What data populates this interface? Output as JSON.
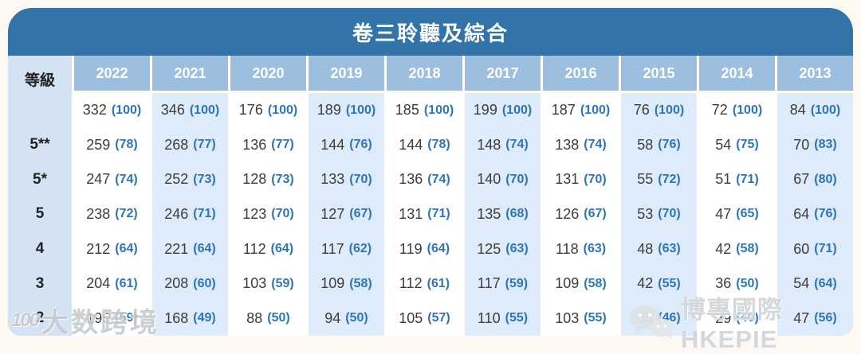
{
  "card": {
    "title": "卷三聆聽及綜合",
    "colors": {
      "title_bar": "#3273aa",
      "year_header": "#9cbfdf",
      "label_column": "#d3e3f3",
      "alt_column": "#ddebfa",
      "white_column": "#ffffff",
      "value_text": "#3c3c3c",
      "percent_text": "#2e75b6",
      "page_background": "#fdf8f1"
    }
  },
  "chart_data": {
    "type": "table",
    "title": "卷三聆聽及綜合",
    "row_header": "等級",
    "columns": [
      "2022",
      "2021",
      "2020",
      "2019",
      "2018",
      "2017",
      "2016",
      "2015",
      "2014",
      "2013"
    ],
    "cell_format": "value (percent)",
    "rows": [
      {
        "label": "",
        "cells": [
          [
            332,
            100
          ],
          [
            346,
            100
          ],
          [
            176,
            100
          ],
          [
            189,
            100
          ],
          [
            185,
            100
          ],
          [
            199,
            100
          ],
          [
            187,
            100
          ],
          [
            76,
            100
          ],
          [
            72,
            100
          ],
          [
            84,
            100
          ]
        ]
      },
      {
        "label": "5**",
        "cells": [
          [
            259,
            78
          ],
          [
            268,
            77
          ],
          [
            136,
            77
          ],
          [
            144,
            76
          ],
          [
            144,
            78
          ],
          [
            148,
            74
          ],
          [
            138,
            74
          ],
          [
            58,
            76
          ],
          [
            54,
            75
          ],
          [
            70,
            83
          ]
        ]
      },
      {
        "label": "5*",
        "cells": [
          [
            247,
            74
          ],
          [
            252,
            73
          ],
          [
            128,
            73
          ],
          [
            133,
            70
          ],
          [
            136,
            74
          ],
          [
            140,
            70
          ],
          [
            131,
            70
          ],
          [
            55,
            72
          ],
          [
            51,
            71
          ],
          [
            67,
            80
          ]
        ]
      },
      {
        "label": "5",
        "cells": [
          [
            238,
            72
          ],
          [
            246,
            71
          ],
          [
            123,
            70
          ],
          [
            127,
            67
          ],
          [
            131,
            71
          ],
          [
            135,
            68
          ],
          [
            126,
            67
          ],
          [
            53,
            70
          ],
          [
            47,
            65
          ],
          [
            64,
            76
          ]
        ]
      },
      {
        "label": "4",
        "cells": [
          [
            212,
            64
          ],
          [
            221,
            64
          ],
          [
            112,
            64
          ],
          [
            117,
            62
          ],
          [
            119,
            64
          ],
          [
            125,
            63
          ],
          [
            118,
            63
          ],
          [
            48,
            63
          ],
          [
            42,
            58
          ],
          [
            60,
            71
          ]
        ]
      },
      {
        "label": "3",
        "cells": [
          [
            204,
            61
          ],
          [
            208,
            60
          ],
          [
            103,
            59
          ],
          [
            109,
            58
          ],
          [
            112,
            61
          ],
          [
            117,
            59
          ],
          [
            109,
            58
          ],
          [
            42,
            55
          ],
          [
            36,
            50
          ],
          [
            54,
            64
          ]
        ]
      },
      {
        "label": "2",
        "cells": [
          [
            196,
            59
          ],
          [
            168,
            49
          ],
          [
            88,
            50
          ],
          [
            94,
            50
          ],
          [
            105,
            57
          ],
          [
            110,
            55
          ],
          [
            103,
            55
          ],
          [
            35,
            46
          ],
          [
            29,
            40
          ],
          [
            47,
            56
          ]
        ]
      }
    ]
  },
  "watermarks": {
    "left": {
      "logo": "100",
      "text": "大数跨境"
    },
    "right": {
      "icon": "wechat-icon",
      "text": "博專國際 HKEPIE"
    }
  }
}
